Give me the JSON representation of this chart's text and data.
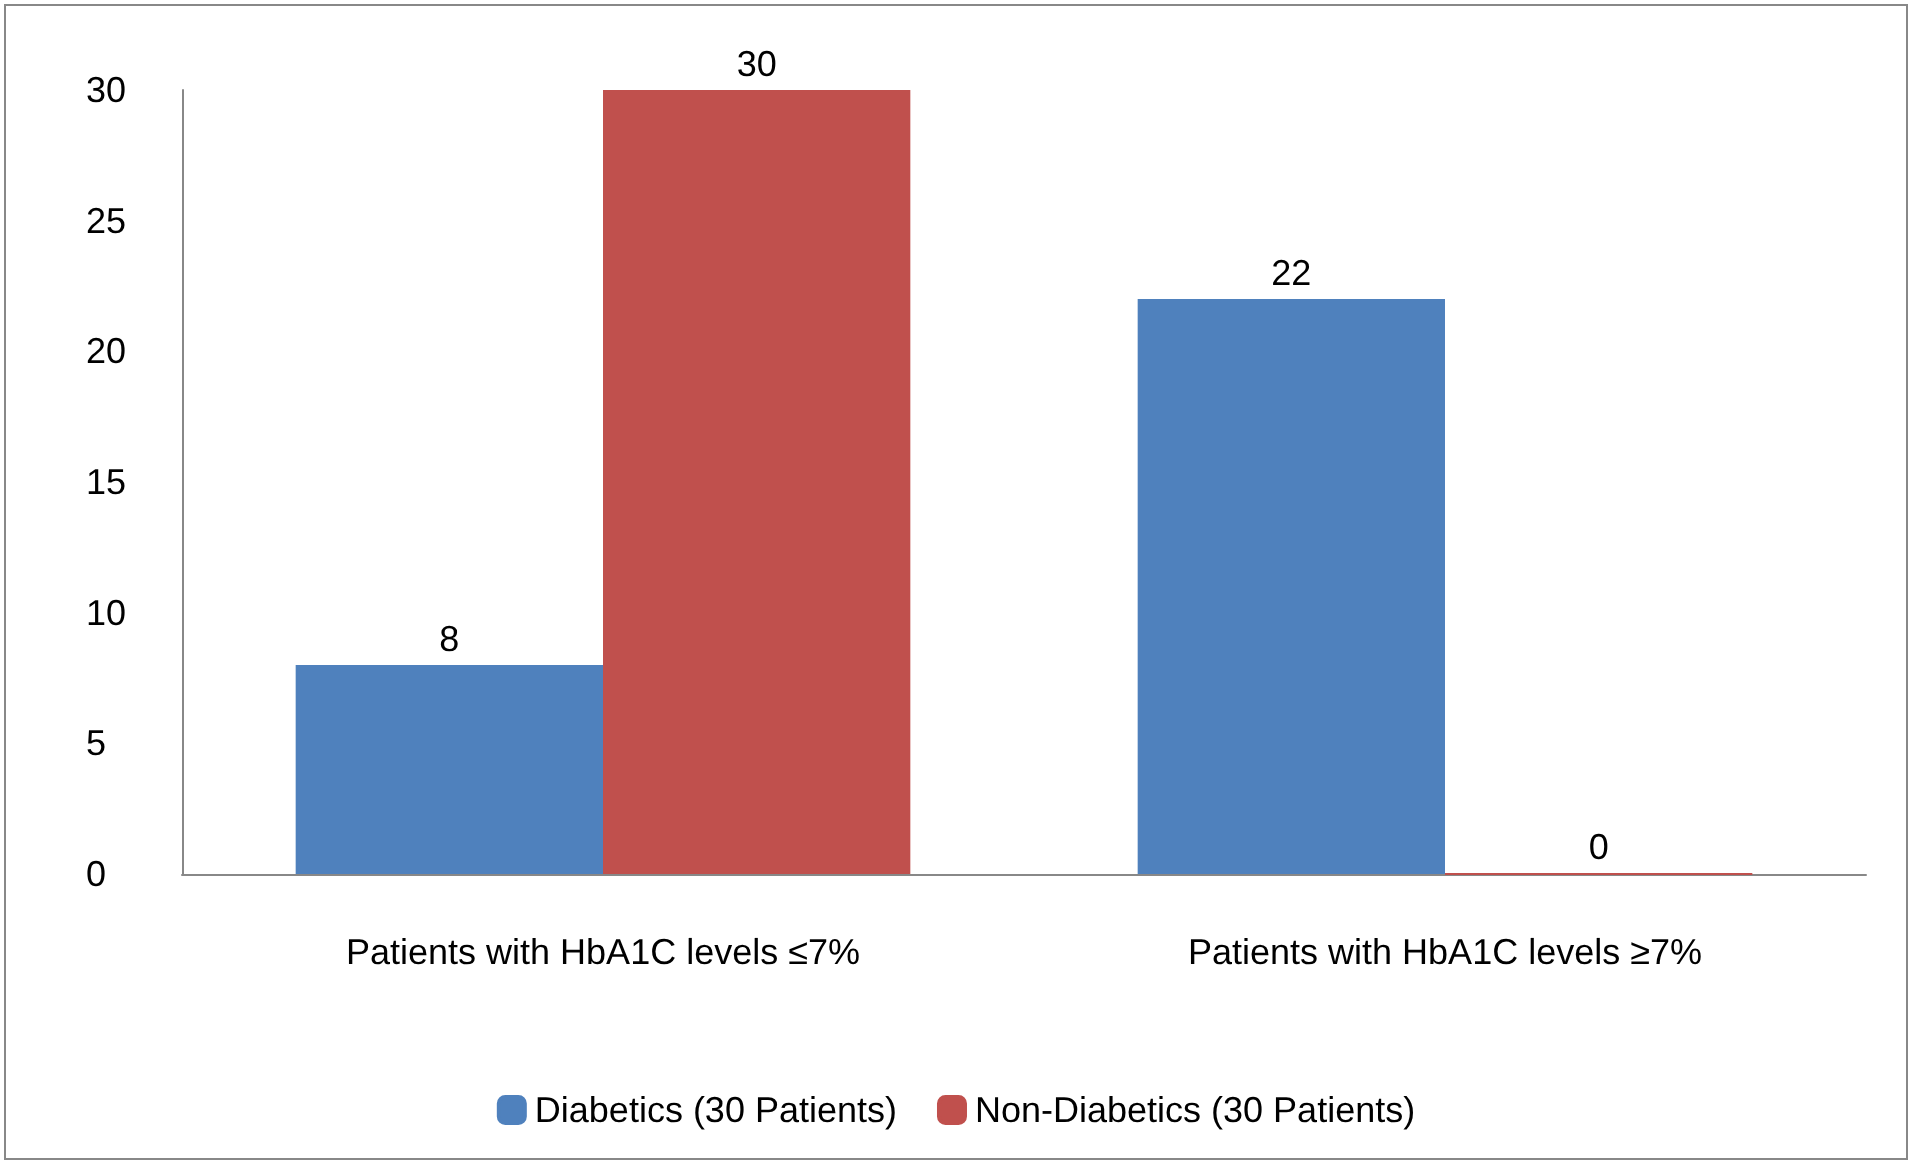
{
  "chart_data": {
    "type": "bar",
    "categories": [
      "Patients with HbA1C levels ≤7%",
      "Patients with HbA1C levels ≥7%"
    ],
    "series": [
      {
        "name": "Diabetics (30 Patients)",
        "color": "#4f81bd",
        "values": [
          8,
          22
        ]
      },
      {
        "name": "Non-Diabetics (30 Patients)",
        "color": "#c0504d",
        "values": [
          30,
          0
        ]
      }
    ],
    "ylim": [
      0,
      30
    ],
    "yticks": [
      0,
      5,
      10,
      15,
      20,
      25,
      30
    ],
    "grid": false,
    "legend": "bottom",
    "data_labels": true
  }
}
